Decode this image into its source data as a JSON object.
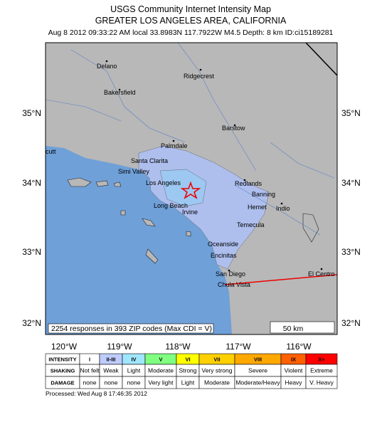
{
  "title": "USGS Community Internet Intensity Map",
  "subtitle": "GREATER LOS ANGELES AREA, CALIFORNIA",
  "event_info": "Aug 8 2012 09:33:22 AM local 33.8983N 117.7922W M4.5 Depth: 8 km ID:ci15189281",
  "places": [
    "Delano",
    "Ridgecrest",
    "Bakersfield",
    "Barstow",
    "Palmdale",
    "Santa Clarita",
    "Simi Valley",
    "Los Angeles",
    "Redlands",
    "Banning",
    "Long Beach",
    "Irvine",
    "Hemet",
    "Indio",
    "Temecula",
    "Oceanside",
    "Encinitas",
    "San Diego",
    "Chula Vista",
    "El Centro",
    "cutt"
  ],
  "latitudes": [
    "35°N",
    "34°N",
    "33°N",
    "32°N"
  ],
  "longitudes": [
    "120°W",
    "119°W",
    "118°W",
    "117°W",
    "116°W"
  ],
  "responses_note": "2254 responses in 393 ZIP codes (Max CDI = V)",
  "scale_label": "50 km",
  "legend": {
    "row_labels": [
      "INTENSITY",
      "SHAKING",
      "DAMAGE"
    ],
    "columns": [
      {
        "intensity": "I",
        "shaking": "Not felt",
        "damage": "none",
        "color": "#ffffff"
      },
      {
        "intensity": "II-III",
        "shaking": "Weak",
        "damage": "none",
        "color": "#bfccff"
      },
      {
        "intensity": "IV",
        "shaking": "Light",
        "damage": "none",
        "color": "#a0e6ff"
      },
      {
        "intensity": "V",
        "shaking": "Moderate",
        "damage": "Very light",
        "color": "#80ff80"
      },
      {
        "intensity": "VI",
        "shaking": "Strong",
        "damage": "Light",
        "color": "#ffff00"
      },
      {
        "intensity": "VII",
        "shaking": "Very strong",
        "damage": "Moderate",
        "color": "#ffd000"
      },
      {
        "intensity": "VIII",
        "shaking": "Severe",
        "damage": "Moderate/Heavy",
        "color": "#ffa800"
      },
      {
        "intensity": "IX",
        "shaking": "Violent",
        "damage": "Heavy",
        "color": "#ff6000"
      },
      {
        "intensity": "X+",
        "shaking": "Extreme",
        "damage": "V. Heavy",
        "color": "#ff0000"
      }
    ]
  },
  "processed": "Processed: Wed Aug  8 17:46:35 2012"
}
